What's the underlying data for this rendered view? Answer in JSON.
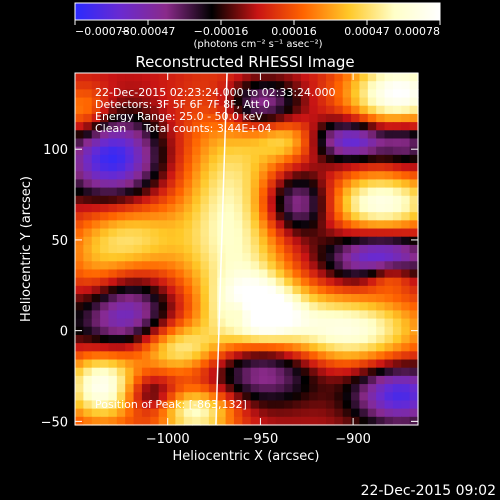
{
  "chart_data": {
    "type": "heatmap",
    "title": "Reconstructed RHESSI Image",
    "xlabel": "Heliocentric X (arcsec)",
    "ylabel": "Heliocentric Y (arcsec)",
    "x_ticks": [
      "−1000",
      "−950",
      "−900"
    ],
    "y_ticks": [
      "100",
      "50",
      "0",
      "−50"
    ],
    "colorbar": {
      "ticks": [
        "−0.00078",
        "−0.00047",
        "−0.00016",
        "0.00016",
        "0.00047",
        "0.00078"
      ],
      "units": "(photons cm⁻² s⁻¹ asec⁻²)",
      "range": [
        -0.00078,
        0.00078
      ],
      "colors": [
        "#2a2aff",
        "#6a2ad0",
        "#8a2a8a",
        "#000000",
        "#c81414",
        "#ff6400",
        "#ffc828",
        "#ffffc8",
        "#ffffff"
      ]
    },
    "annotations": {
      "time_range": "22-Dec-2015 02:23:24.000 to 02:33:24.000",
      "detectors": "Detectors: 3F 5F 6F 7F 8F, Att 0",
      "energy_range": "Energy Range: 25.0 - 50.0 keV",
      "clean_counts": "Clean     Total counts: 3.44E+04",
      "peak": "Position of Peak: [-863,132]"
    },
    "xlim": [
      -1050,
      -865
    ],
    "ylim": [
      -52,
      142
    ],
    "limb_line": [
      [
        -968,
        142
      ],
      [
        -974,
        -52
      ]
    ],
    "heatmap": {
      "cols": 41,
      "rows": 43,
      "components": [
        {
          "x": -965,
          "y": 60,
          "sx": 20,
          "sy": 45,
          "amp": 0.0006
        },
        {
          "x": -1020,
          "y": 50,
          "sx": 20,
          "sy": 15,
          "amp": 0.00045
        },
        {
          "x": -1040,
          "y": 18,
          "sx": 14,
          "sy": 20,
          "amp": 0.0004
        },
        {
          "x": -885,
          "y": 70,
          "sx": 22,
          "sy": 12,
          "amp": 0.0007
        },
        {
          "x": -905,
          "y": 0,
          "sx": 30,
          "sy": 14,
          "amp": 0.0007
        },
        {
          "x": -950,
          "y": 10,
          "sx": 16,
          "sy": 14,
          "amp": 0.0007
        },
        {
          "x": -995,
          "y": -10,
          "sx": 18,
          "sy": 10,
          "amp": 0.00055
        },
        {
          "x": -1035,
          "y": -30,
          "sx": 15,
          "sy": 14,
          "amp": 0.00075
        },
        {
          "x": -985,
          "y": -45,
          "sx": 15,
          "sy": 10,
          "amp": 0.0006
        },
        {
          "x": -875,
          "y": 130,
          "sx": 20,
          "sy": 15,
          "amp": 0.0008
        },
        {
          "x": -880,
          "y": 30,
          "sx": 10,
          "sy": 6,
          "amp": 0.0004
        },
        {
          "x": -1045,
          "y": 120,
          "sx": 10,
          "sy": 10,
          "amp": 0.00035
        },
        {
          "x": -935,
          "y": 105,
          "sx": 12,
          "sy": 8,
          "amp": 0.00035
        },
        {
          "x": -1030,
          "y": 95,
          "sx": 18,
          "sy": 16,
          "amp": -0.00075
        },
        {
          "x": -950,
          "y": 125,
          "sx": 14,
          "sy": 10,
          "amp": -0.00055
        },
        {
          "x": -930,
          "y": 70,
          "sx": 14,
          "sy": 12,
          "amp": -0.0006
        },
        {
          "x": -870,
          "y": 105,
          "sx": 10,
          "sy": 10,
          "amp": -0.00045
        },
        {
          "x": -900,
          "y": 105,
          "sx": 15,
          "sy": 8,
          "amp": -0.0007
        },
        {
          "x": -885,
          "y": 40,
          "sx": 20,
          "sy": 10,
          "amp": -0.0007
        },
        {
          "x": -1030,
          "y": 8,
          "sx": 20,
          "sy": 16,
          "amp": -0.0008
        },
        {
          "x": -950,
          "y": -20,
          "sx": 22,
          "sy": 14,
          "amp": -0.0006
        },
        {
          "x": -875,
          "y": -35,
          "sx": 18,
          "sy": 12,
          "amp": -0.0007
        },
        {
          "x": -1010,
          "y": -35,
          "sx": 10,
          "sy": 8,
          "amp": -0.00035
        },
        {
          "x": -960,
          "y": 10,
          "sx": 6,
          "sy": 6,
          "amp": -0.0003
        }
      ]
    }
  },
  "footer": {
    "timestamp": "22-Dec-2015 09:02"
  }
}
